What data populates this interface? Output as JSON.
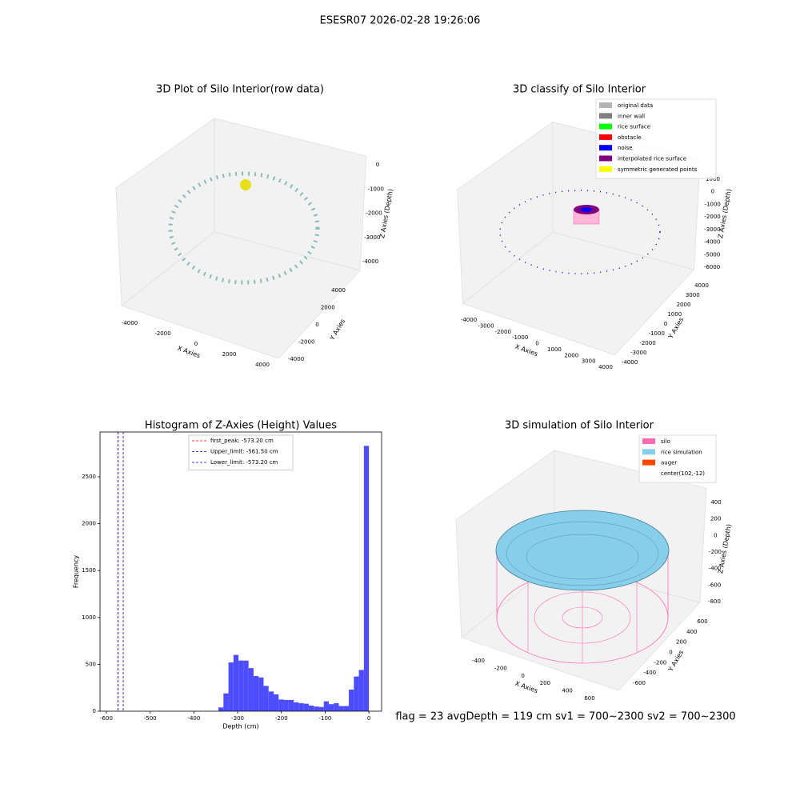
{
  "title": "ESESR07 2026-02-28 19:26:06",
  "footer": "flag = 23  avgDepth = 119 cm  sv1 = 700~2300  sv2 = 700~2300",
  "chart_data": [
    {
      "type": "scatter3d",
      "title": "3D Plot of Silo Interior(row data)",
      "x_label": "X Axies",
      "y_label": "Y Axies",
      "z_label": "Z Axies (Depth)",
      "xticks": [
        -4000,
        -2000,
        0,
        2000,
        4000
      ],
      "yticks": [
        4000,
        2000,
        0,
        -2000,
        -4000
      ],
      "zticks": [
        0,
        -1000,
        -2000,
        -3000,
        -4000
      ]
    },
    {
      "type": "scatter3d",
      "title": "3D classify of Silo Interior",
      "x_label": "X Axies",
      "y_label": "Y Axies",
      "z_label": "Z Axies (Depth)",
      "xticks": [
        -4000,
        -3000,
        -2000,
        -1000,
        0,
        1000,
        2000,
        3000,
        4000
      ],
      "yticks": [
        4000,
        3000,
        2000,
        1000,
        0,
        -1000,
        -2000,
        -3000,
        -4000
      ],
      "zticks": [
        1000,
        0,
        -1000,
        -2000,
        -3000,
        -4000,
        -5000,
        -6000
      ],
      "series": [
        {
          "name": "original data",
          "color": "#b3b3b3"
        },
        {
          "name": "inner wall",
          "color": "#808080"
        },
        {
          "name": "rice surface",
          "color": "#00ff00"
        },
        {
          "name": "obstacle",
          "color": "#ff0000"
        },
        {
          "name": "noise",
          "color": "#0000ff"
        },
        {
          "name": "interpolated rice surface",
          "color": "#800080"
        },
        {
          "name": "symmetric generated points",
          "color": "#ffff00"
        }
      ]
    },
    {
      "type": "histogram",
      "title": "Histogram of Z-Axies (Height) Values",
      "x_label": "Depth (cm)",
      "y_label": "Frequency",
      "color": "#4d4dff",
      "bins": [
        -343.92,
        -332.46,
        -320.99,
        -309.53,
        -298.06,
        -286.6,
        -275.14,
        -263.67,
        -252.21,
        -240.74,
        -229.28,
        -217.82,
        -206.35,
        -194.89,
        -183.42,
        -171.96,
        -160.5,
        -149.03,
        -137.57,
        -126.1,
        -114.64,
        -103.18,
        -91.71,
        -80.25,
        -68.78,
        -57.32,
        -45.86,
        -34.39,
        -22.93,
        -11.46,
        0
      ],
      "values": [
        40,
        190,
        520,
        600,
        540,
        540,
        460,
        375,
        360,
        270,
        210,
        180,
        125,
        120,
        120,
        95,
        85,
        80,
        60,
        50,
        45,
        105,
        75,
        85,
        55,
        55,
        230,
        370,
        440,
        2830
      ],
      "xlim": [
        -614.6,
        29
      ],
      "ylim": [
        0,
        2978
      ],
      "xticks": [
        -600,
        -500,
        -400,
        -300,
        -200,
        -100,
        0
      ],
      "yticks": [
        0,
        500,
        1000,
        1500,
        2000,
        2500
      ],
      "vlines": [
        {
          "name": "first_peak: -573.20 cm",
          "value": -573.2,
          "color": "#ff0000"
        },
        {
          "name": "Upper_limit: -561.50 cm",
          "value": -561.5,
          "color": "#0000cc"
        },
        {
          "name": "Lower_limit: -573.20 cm",
          "value": -573.2,
          "color": "#0000cc"
        }
      ]
    },
    {
      "type": "scatter3d",
      "title": "3D simulation of Silo Interior",
      "x_label": "X Axies",
      "y_label": "Y Axies",
      "z_label": "Z Axies (Depth)",
      "xticks": [
        -400,
        -200,
        0,
        200,
        400,
        600
      ],
      "yticks": [
        600,
        400,
        200,
        0,
        -200,
        -400,
        -600
      ],
      "zticks": [
        400,
        200,
        0,
        -200,
        -400,
        -600,
        -800
      ],
      "series": [
        {
          "name": "silo",
          "color": "#ff69b4"
        },
        {
          "name": "rice simulation",
          "color": "#87ceeb"
        },
        {
          "name": "auger",
          "color": "#ff4500"
        },
        {
          "name": "center(102,-12)"
        }
      ]
    }
  ]
}
